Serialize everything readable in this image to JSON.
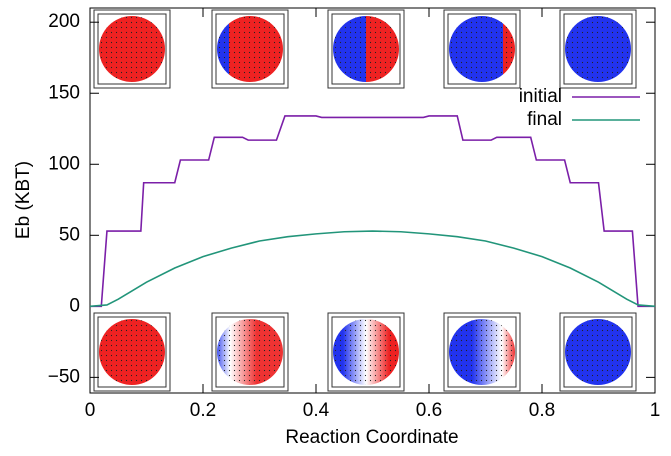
{
  "chart_data": {
    "type": "line",
    "x_label": "Reaction Coordinate",
    "y_label": "Eb (KBT)",
    "xlim": [
      0,
      1
    ],
    "ylim": [
      -61,
      210
    ],
    "xticks": [
      0,
      0.2,
      0.4,
      0.6,
      0.8,
      1
    ],
    "yticks": [
      {
        "value": -50,
        "label": "−50"
      },
      0,
      50,
      100,
      150,
      200
    ],
    "legend": "upper right",
    "series": [
      {
        "name": "initial",
        "color": "#7b1fa8",
        "x": [
          0,
          0.02,
          0.03,
          0.09,
          0.095,
          0.15,
          0.16,
          0.21,
          0.22,
          0.27,
          0.28,
          0.33,
          0.345,
          0.4,
          0.41,
          0.5,
          0.59,
          0.6,
          0.65,
          0.66,
          0.71,
          0.72,
          0.78,
          0.79,
          0.84,
          0.85,
          0.9,
          0.91,
          0.96,
          0.97,
          1
        ],
        "values": [
          0,
          0,
          53,
          53,
          87,
          87,
          103,
          103,
          119,
          119,
          117,
          117,
          134,
          134,
          133,
          133,
          133,
          134,
          134,
          117,
          117,
          119,
          119,
          103,
          103,
          87,
          87,
          53,
          53,
          0,
          0
        ]
      },
      {
        "name": "final",
        "color": "#22957a",
        "x": [
          0,
          0.03,
          0.05,
          0.1,
          0.15,
          0.2,
          0.25,
          0.3,
          0.35,
          0.4,
          0.45,
          0.5,
          0.55,
          0.6,
          0.65,
          0.7,
          0.75,
          0.8,
          0.85,
          0.9,
          0.95,
          0.97,
          1
        ],
        "values": [
          0,
          1,
          5,
          17,
          27,
          35,
          41,
          46,
          49,
          51,
          52.5,
          53,
          52.5,
          51,
          49,
          46,
          41,
          35,
          27,
          17,
          5,
          1,
          0
        ]
      }
    ]
  }
}
